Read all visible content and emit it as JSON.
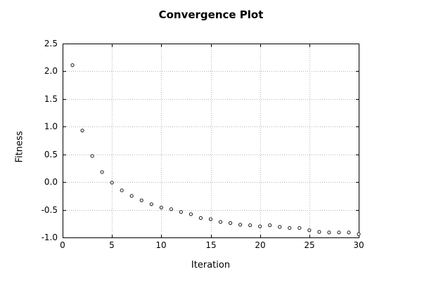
{
  "chart_data": {
    "type": "scatter",
    "title": "Convergence Plot",
    "xlabel": "Iteration",
    "ylabel": "Fitness",
    "x": [
      1,
      2,
      3,
      4,
      5,
      6,
      7,
      8,
      9,
      10,
      11,
      12,
      13,
      14,
      15,
      16,
      17,
      18,
      19,
      20,
      21,
      22,
      23,
      24,
      25,
      26,
      27,
      28,
      29,
      30
    ],
    "y": [
      2.11,
      0.93,
      0.47,
      0.18,
      -0.01,
      -0.15,
      -0.25,
      -0.33,
      -0.4,
      -0.46,
      -0.49,
      -0.54,
      -0.58,
      -0.65,
      -0.67,
      -0.72,
      -0.74,
      -0.77,
      -0.78,
      -0.8,
      -0.78,
      -0.81,
      -0.83,
      -0.83,
      -0.87,
      -0.9,
      -0.91,
      -0.91,
      -0.91,
      -0.94
    ],
    "xlim": [
      0,
      30
    ],
    "ylim": [
      -1.0,
      2.5
    ],
    "xticks": [
      0,
      5,
      10,
      15,
      20,
      25,
      30
    ],
    "yticks": [
      -1.0,
      -0.5,
      0.0,
      0.5,
      1.0,
      1.5,
      2.0,
      2.5
    ],
    "grid": true,
    "grid_style": "dotted",
    "legend_position": "none",
    "marker": {
      "shape": "open-circle",
      "color": "#1a1a1a",
      "fill": "#ffffff",
      "radius_px": 2.1
    },
    "colors": {
      "background": "#ffffff",
      "axis": "#000000",
      "grid": "#b3b3b3",
      "text": "#000000"
    }
  }
}
